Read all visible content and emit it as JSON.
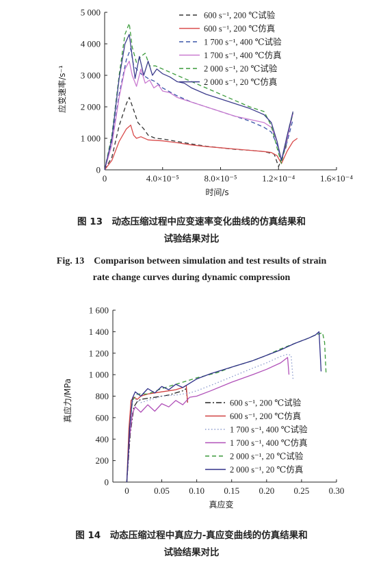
{
  "chart_data": [
    {
      "type": "line",
      "xlabel": "时间/s",
      "ylabel": "应变速率/s⁻¹",
      "xlim": [
        0,
        0.00016
      ],
      "ylim": [
        0,
        5000
      ],
      "xticks": [
        {
          "v": 0,
          "label": "0"
        },
        {
          "v": 4e-05,
          "label": "4.0×10⁻⁵"
        },
        {
          "v": 8e-05,
          "label": "8.0×10⁻⁵"
        },
        {
          "v": 0.00012,
          "label": "1.2×10⁻⁴"
        },
        {
          "v": 0.00016,
          "label": "1.6×10⁻⁴"
        }
      ],
      "yticks": [
        {
          "v": 0,
          "label": "0"
        },
        {
          "v": 1000,
          "label": "1 000"
        },
        {
          "v": 2000,
          "label": "2 000"
        },
        {
          "v": 3000,
          "label": "3 000"
        },
        {
          "v": 4000,
          "label": "4 000"
        },
        {
          "v": 5000,
          "label": "5 000"
        }
      ],
      "legend_position": "top-right",
      "series": [
        {
          "name": "600 s⁻¹, 200 ℃试验",
          "color": "#333333",
          "dash": "dash",
          "x": [
            0,
            5e-06,
            1e-05,
            1.5e-05,
            1.7e-05,
            2e-05,
            2.3e-05,
            2.7e-05,
            3e-05,
            3.5e-05,
            4e-05,
            5e-05,
            6e-05,
            7e-05,
            8e-05,
            9e-05,
            0.0001,
            0.00011,
            0.000117,
            0.00012,
            0.000125,
            0.000128
          ],
          "y": [
            0,
            400,
            1400,
            2100,
            2300,
            1900,
            1500,
            1300,
            1100,
            1000,
            980,
            900,
            820,
            750,
            700,
            650,
            620,
            580,
            500,
            100,
            700,
            1500
          ]
        },
        {
          "name": "600 s⁻¹, 200 ℃仿真",
          "color": "#d94a4a",
          "dash": "solid",
          "x": [
            0,
            5e-06,
            1e-05,
            1.5e-05,
            1.8e-05,
            2e-05,
            2.2e-05,
            2.5e-05,
            3e-05,
            4e-05,
            5e-05,
            6e-05,
            7e-05,
            8e-05,
            9e-05,
            0.0001,
            0.00011,
            0.000115,
            0.000119,
            0.000122,
            0.000126,
            0.00013,
            0.000133
          ],
          "y": [
            0,
            300,
            900,
            1300,
            1420,
            1100,
            1000,
            1050,
            950,
            920,
            860,
            790,
            740,
            700,
            660,
            620,
            580,
            550,
            450,
            200,
            600,
            900,
            1000
          ]
        },
        {
          "name": "1 700 s⁻¹, 400 ℃试验",
          "color": "#3a55a8",
          "dash": "dash",
          "x": [
            0,
            5e-06,
            1e-05,
            1.5e-05,
            1.8e-05,
            2e-05,
            2.5e-05,
            3e-05,
            3.5e-05,
            4e-05,
            5e-05,
            6e-05,
            7e-05,
            8e-05,
            9e-05,
            0.0001,
            0.00011,
            0.000115,
            0.000119,
            0.000122,
            0.000126,
            0.00013
          ],
          "y": [
            0,
            900,
            2400,
            3500,
            3850,
            3300,
            3050,
            2900,
            2800,
            2600,
            2350,
            2150,
            2000,
            1850,
            1700,
            1550,
            1350,
            1200,
            800,
            300,
            900,
            1600
          ]
        },
        {
          "name": "1 700 s⁻¹, 400 ℃仿真",
          "color": "#c97ad0",
          "dash": "solid",
          "x": [
            0,
            5e-06,
            1e-05,
            1.4e-05,
            1.7e-05,
            1.9e-05,
            2.2e-05,
            2.5e-05,
            2.8e-05,
            3.1e-05,
            3.4e-05,
            3.7e-05,
            4e-05,
            4.5e-05,
            5e-05,
            6e-05,
            7e-05,
            8e-05,
            9e-05,
            0.0001,
            0.00011,
            0.000115,
            0.000119,
            0.000122,
            0.000126,
            0.00013
          ],
          "y": [
            0,
            800,
            2300,
            3200,
            3450,
            3000,
            2650,
            3200,
            2750,
            2850,
            2600,
            2700,
            2500,
            2450,
            2300,
            2150,
            2000,
            1850,
            1700,
            1600,
            1500,
            1350,
            900,
            300,
            1000,
            1800
          ]
        },
        {
          "name": "2 000 s⁻¹, 20 ℃试验",
          "color": "#3a9a3a",
          "dash": "dash",
          "x": [
            0,
            5e-06,
            1e-05,
            1.4e-05,
            1.7e-05,
            1.9e-05,
            2.2e-05,
            2.5e-05,
            2.8e-05,
            3.1e-05,
            3.5e-05,
            4e-05,
            5e-05,
            6e-05,
            7e-05,
            8e-05,
            9e-05,
            0.0001,
            0.00011,
            0.000115,
            0.000119,
            0.000122,
            0.000126,
            0.00013
          ],
          "y": [
            0,
            1100,
            3000,
            4300,
            4650,
            3900,
            3400,
            3600,
            3700,
            3300,
            3300,
            3200,
            3000,
            2800,
            2600,
            2400,
            2200,
            2000,
            1850,
            1400,
            700,
            200,
            1100,
            1800
          ]
        },
        {
          "name": "2 000 s⁻¹, 20 ℃仿真",
          "color": "#3c3c8c",
          "dash": "solid",
          "x": [
            0,
            5e-06,
            1e-05,
            1.4e-05,
            1.7e-05,
            1.9e-05,
            2.1e-05,
            2.4e-05,
            2.7e-05,
            3e-05,
            3.3e-05,
            3.6e-05,
            4e-05,
            4.5e-05,
            5e-05,
            5.5e-05,
            6e-05,
            7e-05,
            8e-05,
            9e-05,
            0.0001,
            0.00011,
            0.000115,
            0.000119,
            0.000122,
            0.000126,
            0.00013
          ],
          "y": [
            0,
            1000,
            2900,
            4000,
            4300,
            3600,
            2900,
            3600,
            3000,
            3450,
            3000,
            3200,
            3050,
            2950,
            2800,
            2750,
            2600,
            2400,
            2250,
            2100,
            1950,
            1750,
            1500,
            900,
            300,
            1100,
            1850
          ]
        }
      ]
    },
    {
      "type": "line",
      "xlabel": "真应变",
      "ylabel": "真应力/MPa",
      "xlim": [
        -0.02,
        0.3
      ],
      "ylim": [
        0,
        1600
      ],
      "xticks": [
        {
          "v": 0,
          "label": "0"
        },
        {
          "v": 0.05,
          "label": "0.05"
        },
        {
          "v": 0.1,
          "label": "0.10"
        },
        {
          "v": 0.15,
          "label": "0.15"
        },
        {
          "v": 0.2,
          "label": "0.20"
        },
        {
          "v": 0.25,
          "label": "0.25"
        },
        {
          "v": 0.3,
          "label": "0.30"
        }
      ],
      "yticks": [
        {
          "v": 0,
          "label": "0"
        },
        {
          "v": 200,
          "label": "200"
        },
        {
          "v": 400,
          "label": "400"
        },
        {
          "v": 600,
          "label": "600"
        },
        {
          "v": 800,
          "label": "800"
        },
        {
          "v": 1000,
          "label": "1 000"
        },
        {
          "v": 1200,
          "label": "1 200"
        },
        {
          "v": 1400,
          "label": "1 400"
        },
        {
          "v": 1600,
          "label": "1 600"
        }
      ],
      "legend_position": "bottom-right",
      "series": [
        {
          "name": "600 s⁻¹, 200 ℃试验",
          "color": "#222222",
          "dash": "dashdot",
          "x": [
            0,
            0.005,
            0.01,
            0.015,
            0.02,
            0.03,
            0.04,
            0.05,
            0.06,
            0.07,
            0.08,
            0.085,
            0.087
          ],
          "y": [
            0,
            450,
            700,
            750,
            770,
            780,
            790,
            800,
            810,
            830,
            850,
            870,
            740
          ]
        },
        {
          "name": "600 s⁻¹, 200 ℃仿真",
          "color": "#d04040",
          "dash": "solid",
          "x": [
            0,
            0.003,
            0.006,
            0.01,
            0.015,
            0.02,
            0.03,
            0.04,
            0.05,
            0.06,
            0.07,
            0.08,
            0.085,
            0.087
          ],
          "y": [
            0,
            500,
            760,
            790,
            770,
            800,
            820,
            830,
            840,
            850,
            860,
            880,
            900,
            740
          ]
        },
        {
          "name": "1 700 s⁻¹, 400 ℃试验",
          "color": "#8898cc",
          "dash": "dot",
          "x": [
            0,
            0.004,
            0.008,
            0.01,
            0.02,
            0.03,
            0.05,
            0.07,
            0.09,
            0.1,
            0.12,
            0.15,
            0.18,
            0.2,
            0.22,
            0.23,
            0.235,
            0.238
          ],
          "y": [
            0,
            480,
            740,
            780,
            740,
            760,
            800,
            810,
            830,
            850,
            900,
            980,
            1060,
            1110,
            1170,
            1190,
            1180,
            950
          ]
        },
        {
          "name": "1 700 s⁻¹, 400 ℃仿真",
          "color": "#b050b8",
          "dash": "solid",
          "x": [
            0,
            0.004,
            0.008,
            0.012,
            0.02,
            0.03,
            0.04,
            0.05,
            0.06,
            0.07,
            0.08,
            0.09,
            0.1,
            0.12,
            0.15,
            0.18,
            0.2,
            0.22,
            0.23,
            0.232
          ],
          "y": [
            0,
            420,
            640,
            700,
            650,
            720,
            660,
            730,
            700,
            760,
            720,
            790,
            800,
            850,
            930,
            1000,
            1050,
            1110,
            1160,
            1000
          ]
        },
        {
          "name": "2 000 s⁻¹, 20 ℃试验",
          "color": "#3a9a3a",
          "dash": "dash",
          "x": [
            0,
            0.004,
            0.008,
            0.015,
            0.03,
            0.05,
            0.08,
            0.1,
            0.13,
            0.15,
            0.18,
            0.2,
            0.22,
            0.24,
            0.26,
            0.27,
            0.28,
            0.283,
            0.285
          ],
          "y": [
            0,
            500,
            760,
            820,
            820,
            870,
            930,
            970,
            1020,
            1070,
            1130,
            1180,
            1240,
            1290,
            1340,
            1370,
            1390,
            1300,
            1020
          ]
        },
        {
          "name": "2 000 s⁻¹, 20 ℃仿真",
          "color": "#2f2f88",
          "dash": "solid",
          "x": [
            0,
            0.004,
            0.008,
            0.012,
            0.02,
            0.03,
            0.04,
            0.05,
            0.06,
            0.07,
            0.08,
            0.09,
            0.1,
            0.12,
            0.15,
            0.18,
            0.2,
            0.22,
            0.24,
            0.26,
            0.27,
            0.275,
            0.278
          ],
          "y": [
            0,
            500,
            780,
            840,
            800,
            870,
            830,
            890,
            860,
            910,
            880,
            920,
            960,
            1010,
            1070,
            1130,
            1180,
            1230,
            1290,
            1340,
            1370,
            1400,
            1030
          ]
        }
      ]
    }
  ],
  "captions": {
    "fig13_cn_1": "图 13　动态压缩过程中应变速率变化曲线的仿真结果和",
    "fig13_cn_2": "试验结果对比",
    "fig13_en_1": "Fig. 13　Comparison between simulation and test results of strain",
    "fig13_en_2": "rate change curves during dynamic compression",
    "fig14_cn_1": "图 14　动态压缩过程中真应力-真应变曲线的仿真结果和",
    "fig14_cn_2": "试验结果对比"
  }
}
